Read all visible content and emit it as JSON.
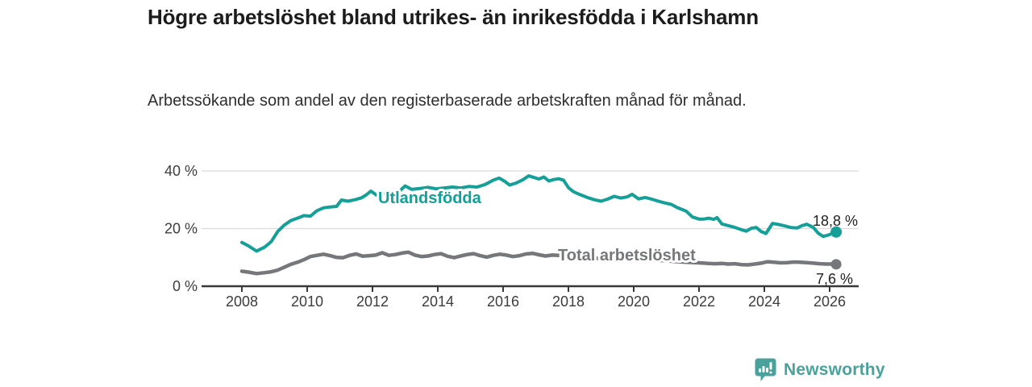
{
  "chart_data": {
    "type": "line",
    "title": "Högre arbetslöshet bland utrikes- än inrikesfödda i Karlshamn",
    "subtitle": "Arbetssökande som andel av den registerbaserade arbetskraften månad för månad.",
    "grid": "horizontal",
    "legend": "inline-labels-on-lines",
    "colors": {
      "axis": "#383838",
      "gridline": "#dadada",
      "tick_text": "#3c3c3c"
    },
    "x_axis": {
      "range": [
        2007.75,
        2026.9
      ],
      "ticks": [
        {
          "value": 2008,
          "label": "2008"
        },
        {
          "value": 2010,
          "label": "2010"
        },
        {
          "value": 2012,
          "label": "2012"
        },
        {
          "value": 2014,
          "label": "2014"
        },
        {
          "value": 2016,
          "label": "2016"
        },
        {
          "value": 2018,
          "label": "2018"
        },
        {
          "value": 2020,
          "label": "2020"
        },
        {
          "value": 2022,
          "label": "2022"
        },
        {
          "value": 2024,
          "label": "2024"
        },
        {
          "value": 2026,
          "label": "2026"
        }
      ]
    },
    "y_axis": {
      "range": [
        0,
        42
      ],
      "unit": "%",
      "ticks": [
        {
          "value": 0,
          "label": "0 %"
        },
        {
          "value": 20,
          "label": "20 %"
        },
        {
          "value": 40,
          "label": "40 %"
        }
      ]
    },
    "series": [
      {
        "name": "Utlandsfödda",
        "color": "#14a098",
        "end_label": "18,8 %",
        "end_value": 18.8,
        "points": [
          [
            2008.0,
            15.2
          ],
          [
            2008.2,
            14.0
          ],
          [
            2008.45,
            12.2
          ],
          [
            2008.7,
            13.6
          ],
          [
            2008.9,
            15.5
          ],
          [
            2009.1,
            19.0
          ],
          [
            2009.3,
            21.2
          ],
          [
            2009.5,
            22.8
          ],
          [
            2009.75,
            23.8
          ],
          [
            2009.9,
            24.5
          ],
          [
            2010.1,
            24.3
          ],
          [
            2010.3,
            26.2
          ],
          [
            2010.5,
            27.2
          ],
          [
            2010.7,
            27.5
          ],
          [
            2010.9,
            27.7
          ],
          [
            2011.05,
            29.9
          ],
          [
            2011.25,
            29.5
          ],
          [
            2011.45,
            30.0
          ],
          [
            2011.65,
            30.6
          ],
          [
            2011.8,
            31.6
          ],
          [
            2011.95,
            33.0
          ],
          [
            2012.15,
            31.4
          ],
          [
            2012.4,
            32.4
          ],
          [
            2012.6,
            32.0
          ],
          [
            2012.8,
            32.7
          ],
          [
            2013.0,
            34.8
          ],
          [
            2013.2,
            33.6
          ],
          [
            2013.45,
            33.9
          ],
          [
            2013.7,
            34.3
          ],
          [
            2013.95,
            33.8
          ],
          [
            2014.2,
            34.1
          ],
          [
            2014.45,
            34.4
          ],
          [
            2014.7,
            34.1
          ],
          [
            2014.95,
            34.6
          ],
          [
            2015.2,
            34.4
          ],
          [
            2015.45,
            35.3
          ],
          [
            2015.7,
            36.8
          ],
          [
            2015.88,
            37.5
          ],
          [
            2016.05,
            36.4
          ],
          [
            2016.2,
            35.1
          ],
          [
            2016.4,
            35.8
          ],
          [
            2016.6,
            36.9
          ],
          [
            2016.78,
            38.3
          ],
          [
            2016.95,
            37.7
          ],
          [
            2017.1,
            37.2
          ],
          [
            2017.25,
            37.9
          ],
          [
            2017.4,
            36.5
          ],
          [
            2017.55,
            37.0
          ],
          [
            2017.7,
            37.3
          ],
          [
            2017.85,
            36.8
          ],
          [
            2018.0,
            34.2
          ],
          [
            2018.15,
            32.8
          ],
          [
            2018.35,
            31.8
          ],
          [
            2018.6,
            30.7
          ],
          [
            2018.8,
            30.0
          ],
          [
            2019.0,
            29.5
          ],
          [
            2019.2,
            30.2
          ],
          [
            2019.4,
            31.2
          ],
          [
            2019.6,
            30.6
          ],
          [
            2019.8,
            31.0
          ],
          [
            2019.95,
            31.9
          ],
          [
            2020.15,
            30.3
          ],
          [
            2020.35,
            30.8
          ],
          [
            2020.55,
            30.2
          ],
          [
            2020.75,
            29.5
          ],
          [
            2020.95,
            28.9
          ],
          [
            2021.15,
            28.4
          ],
          [
            2021.35,
            27.2
          ],
          [
            2021.6,
            26.1
          ],
          [
            2021.8,
            24.0
          ],
          [
            2022.0,
            23.3
          ],
          [
            2022.15,
            23.3
          ],
          [
            2022.3,
            23.6
          ],
          [
            2022.45,
            23.2
          ],
          [
            2022.55,
            23.8
          ],
          [
            2022.7,
            21.6
          ],
          [
            2022.9,
            21.0
          ],
          [
            2023.1,
            20.4
          ],
          [
            2023.3,
            19.6
          ],
          [
            2023.45,
            19.1
          ],
          [
            2023.6,
            20.1
          ],
          [
            2023.75,
            20.4
          ],
          [
            2023.9,
            19.0
          ],
          [
            2024.05,
            18.3
          ],
          [
            2024.25,
            21.8
          ],
          [
            2024.4,
            21.5
          ],
          [
            2024.6,
            21.0
          ],
          [
            2024.8,
            20.4
          ],
          [
            2025.0,
            20.2
          ],
          [
            2025.15,
            21.0
          ],
          [
            2025.3,
            21.5
          ],
          [
            2025.5,
            20.4
          ],
          [
            2025.65,
            18.4
          ],
          [
            2025.8,
            17.3
          ],
          [
            2025.95,
            17.7
          ],
          [
            2026.1,
            18.4
          ],
          [
            2026.2,
            18.8
          ]
        ]
      },
      {
        "name": "Total arbetslöshet",
        "color": "#76777b",
        "end_label": "7,6 %",
        "end_value": 7.6,
        "points": [
          [
            2008.0,
            5.2
          ],
          [
            2008.2,
            4.9
          ],
          [
            2008.45,
            4.4
          ],
          [
            2008.7,
            4.7
          ],
          [
            2008.9,
            5.0
          ],
          [
            2009.1,
            5.6
          ],
          [
            2009.3,
            6.6
          ],
          [
            2009.5,
            7.6
          ],
          [
            2009.75,
            8.5
          ],
          [
            2009.9,
            9.2
          ],
          [
            2010.1,
            10.3
          ],
          [
            2010.3,
            10.7
          ],
          [
            2010.5,
            11.1
          ],
          [
            2010.7,
            10.6
          ],
          [
            2010.9,
            10.0
          ],
          [
            2011.1,
            9.9
          ],
          [
            2011.3,
            10.7
          ],
          [
            2011.5,
            11.2
          ],
          [
            2011.7,
            10.4
          ],
          [
            2011.9,
            10.6
          ],
          [
            2012.1,
            10.8
          ],
          [
            2012.3,
            11.6
          ],
          [
            2012.5,
            10.7
          ],
          [
            2012.7,
            11.0
          ],
          [
            2012.9,
            11.5
          ],
          [
            2013.1,
            11.8
          ],
          [
            2013.3,
            10.8
          ],
          [
            2013.5,
            10.3
          ],
          [
            2013.7,
            10.5
          ],
          [
            2013.9,
            11.0
          ],
          [
            2014.1,
            11.3
          ],
          [
            2014.3,
            10.4
          ],
          [
            2014.5,
            9.9
          ],
          [
            2014.7,
            10.5
          ],
          [
            2014.9,
            11.0
          ],
          [
            2015.1,
            11.3
          ],
          [
            2015.3,
            10.6
          ],
          [
            2015.5,
            10.1
          ],
          [
            2015.7,
            10.7
          ],
          [
            2015.9,
            11.1
          ],
          [
            2016.1,
            10.8
          ],
          [
            2016.3,
            10.3
          ],
          [
            2016.5,
            10.6
          ],
          [
            2016.7,
            11.2
          ],
          [
            2016.9,
            11.4
          ],
          [
            2017.1,
            10.9
          ],
          [
            2017.3,
            10.5
          ],
          [
            2017.5,
            10.8
          ],
          [
            2017.7,
            10.7
          ],
          [
            2018.0,
            10.4
          ],
          [
            2018.5,
            10.0
          ],
          [
            2019.0,
            9.6
          ],
          [
            2019.5,
            9.3
          ],
          [
            2020.0,
            9.5
          ],
          [
            2020.5,
            9.2
          ],
          [
            2021.0,
            8.8
          ],
          [
            2021.5,
            8.4
          ],
          [
            2022.0,
            8.1
          ],
          [
            2022.3,
            7.9
          ],
          [
            2022.5,
            7.8
          ],
          [
            2022.7,
            7.9
          ],
          [
            2022.9,
            7.7
          ],
          [
            2023.1,
            7.8
          ],
          [
            2023.3,
            7.5
          ],
          [
            2023.5,
            7.4
          ],
          [
            2023.7,
            7.7
          ],
          [
            2023.9,
            8.0
          ],
          [
            2024.1,
            8.5
          ],
          [
            2024.3,
            8.3
          ],
          [
            2024.5,
            8.1
          ],
          [
            2024.7,
            8.2
          ],
          [
            2024.9,
            8.4
          ],
          [
            2025.1,
            8.3
          ],
          [
            2025.3,
            8.2
          ],
          [
            2025.5,
            8.0
          ],
          [
            2025.7,
            7.8
          ],
          [
            2025.9,
            7.7
          ],
          [
            2026.1,
            7.7
          ],
          [
            2026.2,
            7.6
          ]
        ]
      }
    ]
  },
  "footer": {
    "brand": "Newsworthy",
    "brand_color": "#48a29b",
    "logo_icon": "newsworthy-speech-bubble-bar-chart-icon"
  }
}
